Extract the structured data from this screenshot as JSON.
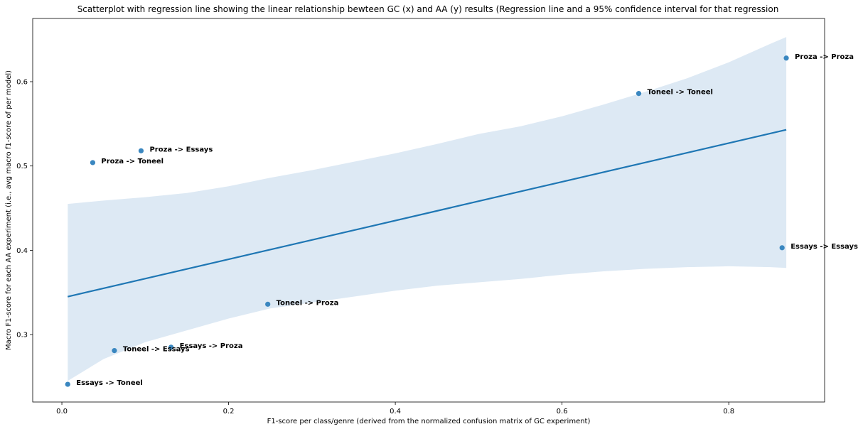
{
  "chart_data": {
    "type": "scatter",
    "title": "Scatterplot with regression line showing the linear relationship bewteen GC (x) and AA (y) results (Regression line and a 95% confidence interval for that regression",
    "xlabel": "F1-score per class/genre (derived from the normalized confusion matrix of GC experiment)",
    "ylabel": "Macro F1-score for each AA experiment (i.e., avg macro f1-score of per model)",
    "xlim": [
      -0.035,
      0.915
    ],
    "ylim": [
      0.22,
      0.675
    ],
    "xticks": [
      0.0,
      0.2,
      0.4,
      0.6,
      0.8
    ],
    "xtick_labels": [
      "0.0",
      "0.2",
      "0.4",
      "0.6",
      "0.8"
    ],
    "yticks": [
      0.3,
      0.4,
      0.5,
      0.6
    ],
    "ytick_labels": [
      "0.3",
      "0.4",
      "0.5",
      "0.6"
    ],
    "grid": false,
    "colors": {
      "points": "#3a87c0",
      "line": "#1f77b4",
      "band": "#dde9f4"
    },
    "points": [
      {
        "label": "Essays -> Toneel",
        "x": 0.007,
        "y": 0.241
      },
      {
        "label": "Proza -> Toneel",
        "x": 0.037,
        "y": 0.504
      },
      {
        "label": "Toneel -> Essays",
        "x": 0.063,
        "y": 0.281
      },
      {
        "label": "Proza -> Essays",
        "x": 0.095,
        "y": 0.518
      },
      {
        "label": "Essays -> Proza",
        "x": 0.131,
        "y": 0.285
      },
      {
        "label": "Toneel -> Proza",
        "x": 0.247,
        "y": 0.336
      },
      {
        "label": "Toneel -> Toneel",
        "x": 0.692,
        "y": 0.586
      },
      {
        "label": "Essays -> Essays",
        "x": 0.864,
        "y": 0.403
      },
      {
        "label": "Proza -> Proza",
        "x": 0.869,
        "y": 0.628
      }
    ],
    "regression": {
      "x": [
        0.007,
        0.869
      ],
      "y": [
        0.345,
        0.543
      ]
    },
    "confidence_band": {
      "x": [
        0.007,
        0.05,
        0.1,
        0.15,
        0.2,
        0.25,
        0.3,
        0.35,
        0.4,
        0.45,
        0.5,
        0.55,
        0.6,
        0.65,
        0.7,
        0.75,
        0.8,
        0.85,
        0.869
      ],
      "upper": [
        0.455,
        0.459,
        0.463,
        0.468,
        0.476,
        0.486,
        0.495,
        0.505,
        0.515,
        0.526,
        0.538,
        0.547,
        0.559,
        0.573,
        0.588,
        0.604,
        0.623,
        0.645,
        0.653
      ],
      "lower": [
        0.245,
        0.271,
        0.291,
        0.305,
        0.319,
        0.331,
        0.338,
        0.345,
        0.352,
        0.358,
        0.362,
        0.366,
        0.371,
        0.375,
        0.378,
        0.38,
        0.381,
        0.38,
        0.379
      ]
    }
  }
}
